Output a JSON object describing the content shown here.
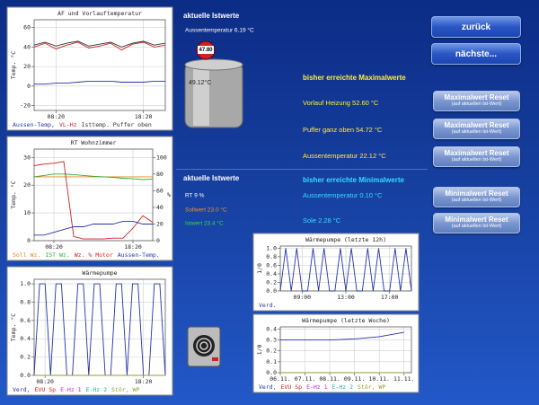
{
  "header": {
    "title": "aktuelle Istwerte",
    "aussen": "Aussentemperatur 6.19 °C",
    "gauge": "47.80",
    "tank": "49.12°C"
  },
  "max": {
    "title": "bisher erreichte Maximalwerte",
    "items": [
      "Vorlauf Heizung 52.60 °C",
      "Puffer ganz oben 54.72 °C",
      "Aussentemperatur 22.12 °C"
    ]
  },
  "ist2": {
    "title": "aktuelle Istwerte",
    "items": [
      "RT 9 %",
      "Sollwert 23.0 °C",
      "Istwert 23.4 °C"
    ]
  },
  "min": {
    "title": "bisher erreichte Minimalwerte",
    "items": [
      "Aussentemperatur 0.10 °C",
      "Sole 2.28 °C"
    ]
  },
  "nav": [
    "zurück",
    "nächste..."
  ],
  "resets": [
    {
      "label": "Maximalwert Reset",
      "sub": "(auf aktuellen Ist-Wert)"
    },
    {
      "label": "Maximalwert Reset",
      "sub": "(auf aktuellen Ist-Wert)"
    },
    {
      "label": "Maximalwert Reset",
      "sub": "(auf aktuellen Ist-Wert)"
    },
    {
      "label": "Minimalwert Reset",
      "sub": "(auf aktuellen Ist-Wert)"
    },
    {
      "label": "Minimalwert Reset",
      "sub": "(auf aktuellen Ist-Wert)"
    }
  ],
  "chart_data": [
    {
      "type": "line",
      "title": "AF und Vorlauftemperatur",
      "y_label": "Temp. °C",
      "x": [
        0,
        1,
        2,
        3,
        4,
        5,
        6,
        7,
        8,
        9,
        10,
        11,
        12
      ],
      "xlim": [
        0,
        12
      ],
      "xticks": [
        {
          "value": 2,
          "label": "08:20"
        },
        {
          "value": 10,
          "label": "18:20"
        }
      ],
      "ylim": [
        -25,
        68
      ],
      "yticks": [
        -20,
        0,
        20,
        40,
        60
      ],
      "grid": true,
      "series": [
        {
          "name": "Aussen-Temp,",
          "color": "#2233aa",
          "values": [
            2,
            2,
            3,
            3,
            4,
            5,
            5,
            5,
            4,
            4,
            4,
            5,
            5
          ]
        },
        {
          "name": "VL-Hz",
          "color": "#cc2222",
          "values": [
            40,
            44,
            38,
            42,
            45,
            39,
            41,
            44,
            37,
            43,
            45,
            40,
            42
          ]
        },
        {
          "name": "Isttemp. Puffer oben",
          "color": "#333333",
          "values": [
            42,
            45,
            41,
            44,
            46,
            41,
            43,
            45,
            40,
            44,
            46,
            42,
            44
          ]
        }
      ]
    },
    {
      "type": "line",
      "title": "RT Wohnzimmer",
      "y_label": "Temp. °C",
      "y2_label": "%",
      "x": [
        0,
        1,
        2,
        3,
        4,
        5,
        6,
        7,
        8,
        9,
        10,
        11,
        12
      ],
      "xlim": [
        0,
        12
      ],
      "xticks": [
        {
          "value": 2,
          "label": "08:20"
        },
        {
          "value": 10,
          "label": "18:20"
        }
      ],
      "ylim": [
        0,
        33
      ],
      "yticks": [
        0,
        10,
        20,
        30
      ],
      "y2lim": [
        0,
        110
      ],
      "y2ticks": [
        0,
        20,
        40,
        60,
        80,
        100
      ],
      "grid": true,
      "series": [
        {
          "name": "Soll Wz.",
          "color": "#e08a20",
          "values": [
            23,
            23,
            23,
            23,
            23,
            23,
            23,
            23,
            23,
            23,
            23,
            23,
            23
          ]
        },
        {
          "name": "IST Wz.",
          "color": "#33aa33",
          "values": [
            23,
            23.5,
            24,
            24,
            23.8,
            23.5,
            23.2,
            23,
            22.8,
            22.5,
            22.3,
            22,
            22.2
          ]
        },
        {
          "name": "Wz. % Motor",
          "color": "#cc2222",
          "axis": "y2",
          "values": [
            90,
            92,
            93,
            95,
            5,
            2,
            2,
            2,
            3,
            3,
            15,
            30,
            22
          ]
        },
        {
          "name": "Aussen-Temp.",
          "color": "#2233aa",
          "values": [
            2,
            2,
            3,
            4,
            5,
            5,
            6,
            6,
            6,
            7,
            7,
            6,
            6
          ]
        }
      ]
    },
    {
      "type": "line",
      "title": "Wärmepumpe",
      "y_label": "Temp. °C",
      "x": [
        0,
        1,
        2,
        3,
        4,
        5,
        6,
        7,
        8,
        9,
        10,
        11,
        12,
        13,
        14,
        15,
        16,
        17,
        18,
        19,
        20,
        21,
        22,
        23,
        24
      ],
      "xlim": [
        0,
        24
      ],
      "xticks": [
        {
          "value": 2,
          "label": "08:20"
        },
        {
          "value": 20,
          "label": "18:20"
        }
      ],
      "ylim": [
        0,
        1.05
      ],
      "yticks": [
        {
          "value": 0,
          "label": "0.0"
        },
        {
          "value": 0.2,
          "label": "0.2"
        },
        {
          "value": 0.4,
          "label": "0.4"
        },
        {
          "value": 0.6,
          "label": "0.6"
        },
        {
          "value": 0.8,
          "label": "0.8"
        },
        {
          "value": 1,
          "label": "1.0"
        }
      ],
      "grid": true,
      "series": [
        {
          "name": "Verd,",
          "color": "#2233aa",
          "values": [
            0,
            1,
            1,
            0,
            1,
            1,
            0,
            0,
            1,
            1,
            0,
            1,
            1,
            0,
            0,
            1,
            1,
            0,
            1,
            1,
            0,
            0,
            1,
            1,
            0
          ]
        },
        {
          "name": "EVU Sp",
          "color": "#cc2222",
          "values": [
            0,
            0,
            0,
            0,
            0,
            0,
            0,
            0,
            0,
            0,
            0,
            0,
            0,
            0,
            0,
            0,
            0,
            0,
            0,
            0,
            0,
            0,
            0,
            0,
            0
          ]
        },
        {
          "name": "E-Hz 1",
          "color": "#cc22cc",
          "values": [
            0,
            0,
            0,
            0,
            0,
            0,
            0,
            0,
            0,
            0,
            0,
            0,
            0,
            0,
            0,
            0,
            0,
            0,
            0,
            0,
            0,
            0,
            0,
            0,
            0
          ]
        },
        {
          "name": "E-Hz 2",
          "color": "#22aaaa",
          "values": [
            0,
            0,
            0,
            0,
            0,
            0,
            0,
            0,
            0,
            0,
            0,
            0,
            0,
            0,
            0,
            0,
            0,
            0,
            0,
            0,
            0,
            0,
            0,
            0,
            0
          ]
        },
        {
          "name": "Stör, WP",
          "color": "#999933",
          "values": [
            0,
            0,
            0,
            0,
            0,
            0,
            0,
            0,
            0,
            0,
            0,
            0,
            0,
            0,
            0,
            0,
            0,
            0,
            0,
            0,
            0,
            0,
            0,
            0,
            0
          ]
        }
      ]
    },
    {
      "type": "line",
      "title": "Wärmepumpe (letzte 12h)",
      "y_label": "1/0",
      "x": [
        0,
        1,
        2,
        3,
        4,
        5,
        6,
        7,
        8,
        9,
        10,
        11,
        12,
        13,
        14,
        15,
        16,
        17,
        18,
        19,
        20,
        21,
        22,
        23,
        24
      ],
      "xlim": [
        0,
        24
      ],
      "xticks": [
        {
          "value": 4,
          "label": "09:00"
        },
        {
          "value": 12,
          "label": "13:00"
        },
        {
          "value": 20,
          "label": "17:00"
        }
      ],
      "ylim": [
        0,
        1.05
      ],
      "yticks": [
        {
          "value": 0,
          "label": "0.0"
        },
        {
          "value": 0.2,
          "label": "0.2"
        },
        {
          "value": 0.4,
          "label": "0.4"
        },
        {
          "value": 0.6,
          "label": "0.6"
        },
        {
          "value": 0.8,
          "label": "0.8"
        },
        {
          "value": 1,
          "label": "1.0"
        }
      ],
      "grid": true,
      "series": [
        {
          "name": "Verd.",
          "color": "#2233aa",
          "values": [
            0,
            1,
            0,
            1,
            0,
            0,
            1,
            0,
            1,
            0,
            0,
            1,
            0,
            1,
            0,
            0,
            1,
            0,
            1,
            0,
            0,
            1,
            0,
            1,
            0
          ]
        }
      ]
    },
    {
      "type": "line",
      "title": "Wärmepumpe (letzte Woche)",
      "y_label": "1/0",
      "x": [
        0,
        1,
        2,
        3,
        4,
        5
      ],
      "xlim": [
        0,
        5.3
      ],
      "xticks": [
        {
          "value": 0,
          "label": "06.11."
        },
        {
          "value": 1,
          "label": "07.11."
        },
        {
          "value": 2,
          "label": "08.11."
        },
        {
          "value": 3,
          "label": "09.11."
        },
        {
          "value": 4,
          "label": "10.11."
        },
        {
          "value": 5,
          "label": "11.11."
        }
      ],
      "ylim": [
        0,
        0.42
      ],
      "yticks": [
        {
          "value": 0,
          "label": "0.0"
        },
        {
          "value": 0.1,
          "label": "0.1"
        },
        {
          "value": 0.2,
          "label": "0.2"
        },
        {
          "value": 0.3,
          "label": "0.3"
        },
        {
          "value": 0.4,
          "label": "0.4"
        }
      ],
      "grid": true,
      "series": [
        {
          "name": "Verd,",
          "color": "#2233aa",
          "values": [
            0.3,
            0.3,
            0.3,
            0.31,
            0.33,
            0.37
          ]
        },
        {
          "name": "EVU Sp",
          "color": "#cc2222",
          "values": [
            0,
            0,
            0,
            0,
            0,
            0
          ]
        },
        {
          "name": "E-Hz 1",
          "color": "#cc22cc",
          "values": [
            0,
            0,
            0,
            0,
            0,
            0
          ]
        },
        {
          "name": "E-Hz 2",
          "color": "#22aaaa",
          "values": [
            0,
            0,
            0,
            0,
            0,
            0
          ]
        },
        {
          "name": "Stör, WP",
          "color": "#999933",
          "values": [
            0,
            0,
            0,
            0,
            0,
            0
          ]
        }
      ]
    }
  ]
}
